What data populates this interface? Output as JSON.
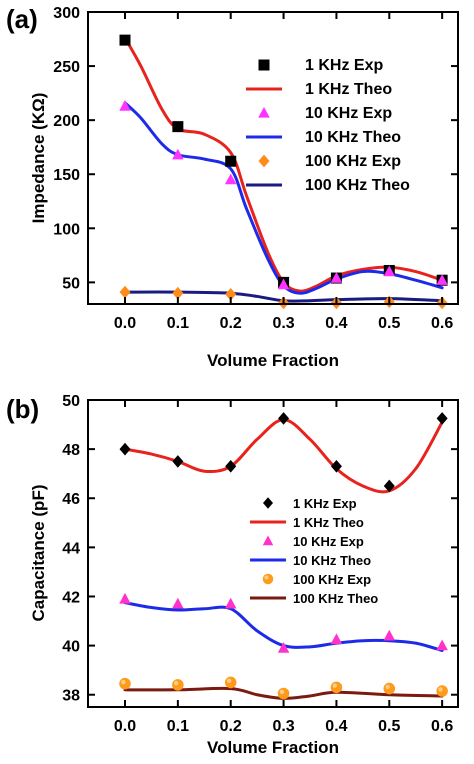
{
  "chart_data": [
    {
      "type": "scatter",
      "panel_label": "(a)",
      "xlabel": "Volume Fraction",
      "ylabel": "Impedance (KΩ)",
      "xlim": [
        -0.07,
        0.63
      ],
      "ylim": [
        30,
        300
      ],
      "xticks": [
        0.0,
        0.1,
        0.2,
        0.3,
        0.4,
        0.5,
        0.6
      ],
      "xtick_labels": [
        "0.0",
        "0.1",
        "0.2",
        "0.3",
        "0.4",
        "0.5",
        "0.6"
      ],
      "yticks": [
        50,
        100,
        150,
        200,
        250,
        300
      ],
      "ytick_labels": [
        "50",
        "100",
        "150",
        "200",
        "250",
        "300"
      ],
      "grid": false,
      "legend_position": "top-right",
      "series": [
        {
          "name": "1 KHz Exp",
          "kind": "marker",
          "marker": "square",
          "color": "#000000",
          "x": [
            0.0,
            0.1,
            0.2,
            0.3,
            0.4,
            0.5,
            0.6
          ],
          "y": [
            274,
            194,
            162,
            50,
            54,
            61,
            52
          ]
        },
        {
          "name": "1 KHz Theo",
          "kind": "line",
          "color": "#e8231d",
          "x": [
            0.0,
            0.03,
            0.07,
            0.1,
            0.15,
            0.2,
            0.23,
            0.27,
            0.3,
            0.33,
            0.36,
            0.4,
            0.45,
            0.5,
            0.55,
            0.6
          ],
          "y": [
            276,
            250,
            210,
            192,
            187,
            170,
            130,
            78,
            50,
            42,
            46,
            56,
            62,
            64,
            60,
            52
          ]
        },
        {
          "name": "10 KHz Exp",
          "kind": "marker",
          "marker": "triangle",
          "color": "#ff33ff",
          "x": [
            0.0,
            0.1,
            0.2,
            0.3,
            0.4,
            0.5,
            0.6
          ],
          "y": [
            213,
            168,
            145,
            48,
            54,
            60,
            52
          ]
        },
        {
          "name": "10 KHz Theo",
          "kind": "line",
          "color": "#1d2be8",
          "x": [
            0.0,
            0.03,
            0.07,
            0.1,
            0.15,
            0.2,
            0.23,
            0.27,
            0.3,
            0.33,
            0.36,
            0.4,
            0.45,
            0.5,
            0.55,
            0.6
          ],
          "y": [
            216,
            202,
            178,
            168,
            164,
            155,
            118,
            72,
            47,
            40,
            44,
            53,
            60,
            58,
            52,
            45
          ]
        },
        {
          "name": "100 KHz Exp",
          "kind": "marker",
          "marker": "diamond",
          "color": "#ff8c1a",
          "x": [
            0.0,
            0.1,
            0.2,
            0.3,
            0.4,
            0.5,
            0.6
          ],
          "y": [
            41,
            40,
            39,
            31,
            31,
            32,
            31
          ]
        },
        {
          "name": "100 KHz Theo",
          "kind": "line",
          "color": "#1a1a80",
          "x": [
            0.0,
            0.1,
            0.2,
            0.25,
            0.3,
            0.35,
            0.4,
            0.5,
            0.6
          ],
          "y": [
            41,
            41,
            40,
            37,
            33,
            33,
            34,
            35,
            33
          ]
        }
      ]
    },
    {
      "type": "scatter",
      "panel_label": "(b)",
      "xlabel": "Volume Fraction",
      "ylabel": "Capacitance (pF)",
      "xlim": [
        -0.07,
        0.63
      ],
      "ylim": [
        37.5,
        50
      ],
      "xticks": [
        0.0,
        0.1,
        0.2,
        0.3,
        0.4,
        0.5,
        0.6
      ],
      "xtick_labels": [
        "0.0",
        "0.1",
        "0.2",
        "0.3",
        "0.4",
        "0.5",
        "0.6"
      ],
      "yticks": [
        38,
        40,
        42,
        44,
        46,
        48,
        50
      ],
      "ytick_labels": [
        "38",
        "40",
        "42",
        "44",
        "46",
        "48",
        "50"
      ],
      "grid": false,
      "legend_position": "center-right",
      "series": [
        {
          "name": "1 KHz Exp",
          "kind": "marker",
          "marker": "diamond",
          "color": "#000000",
          "x": [
            0.0,
            0.1,
            0.2,
            0.3,
            0.4,
            0.5,
            0.6
          ],
          "y": [
            48.0,
            47.5,
            47.3,
            49.25,
            47.3,
            46.5,
            49.25
          ]
        },
        {
          "name": "1 KHz Theo",
          "kind": "line",
          "color": "#e8231d",
          "x": [
            0.0,
            0.05,
            0.1,
            0.15,
            0.2,
            0.25,
            0.3,
            0.35,
            0.4,
            0.45,
            0.5,
            0.55,
            0.6
          ],
          "y": [
            48.0,
            47.8,
            47.5,
            47.1,
            47.3,
            48.4,
            49.2,
            48.4,
            47.2,
            46.5,
            46.3,
            47.2,
            49.1
          ]
        },
        {
          "name": "10 KHz Exp",
          "kind": "marker",
          "marker": "triangle",
          "color": "#ff33cc",
          "x": [
            0.0,
            0.1,
            0.2,
            0.3,
            0.4,
            0.5,
            0.6
          ],
          "y": [
            41.9,
            41.7,
            41.7,
            39.9,
            40.25,
            40.4,
            40.0
          ]
        },
        {
          "name": "10 KHz Theo",
          "kind": "line",
          "color": "#1d2be8",
          "x": [
            0.0,
            0.05,
            0.1,
            0.15,
            0.2,
            0.25,
            0.3,
            0.35,
            0.4,
            0.45,
            0.5,
            0.55,
            0.6
          ],
          "y": [
            41.75,
            41.55,
            41.45,
            41.5,
            41.5,
            40.6,
            40.0,
            39.95,
            40.1,
            40.2,
            40.2,
            40.1,
            39.8
          ]
        },
        {
          "name": "100 KHz Exp",
          "kind": "marker",
          "marker": "circle",
          "color": "#ff9a1a",
          "x": [
            0.0,
            0.1,
            0.2,
            0.3,
            0.4,
            0.5,
            0.6
          ],
          "y": [
            38.45,
            38.4,
            38.5,
            38.05,
            38.3,
            38.25,
            38.15
          ]
        },
        {
          "name": "100 KHz Theo",
          "kind": "line",
          "color": "#7a1a10",
          "x": [
            0.0,
            0.1,
            0.2,
            0.25,
            0.3,
            0.35,
            0.4,
            0.5,
            0.6
          ],
          "y": [
            38.2,
            38.2,
            38.25,
            38.0,
            37.85,
            37.95,
            38.1,
            38.0,
            37.95
          ]
        }
      ]
    }
  ]
}
